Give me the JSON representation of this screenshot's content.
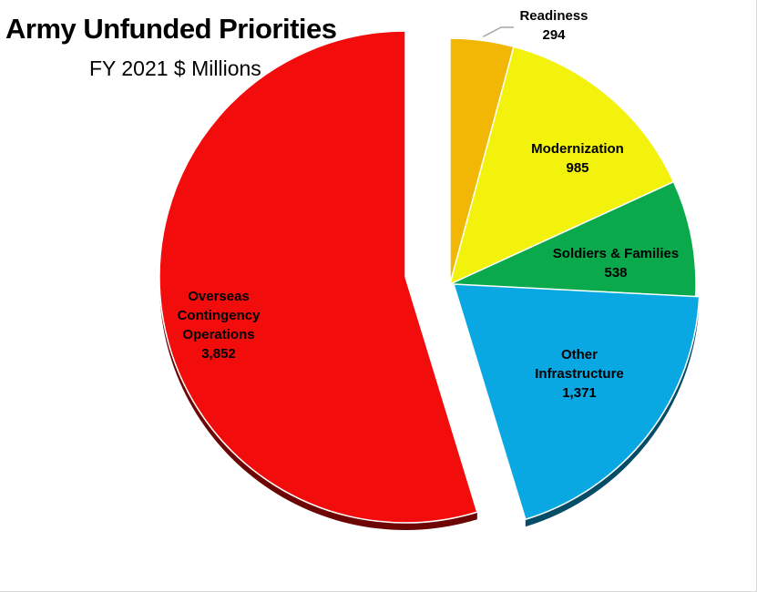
{
  "title": "Army Unfunded Priorities",
  "subtitle": "FY 2021 $ Millions",
  "chart_data": {
    "type": "pie",
    "title": "Army Unfunded Priorities",
    "subtitle": "FY 2021 $ Millions",
    "slices": [
      {
        "label": "Readiness",
        "value": 294,
        "value_text": "294",
        "color": "#F2B705",
        "exploded": false
      },
      {
        "label": "Modernization",
        "value": 985,
        "value_text": "985",
        "color": "#F2F20C",
        "exploded": false
      },
      {
        "label": "Soldiers & Families",
        "value": 538,
        "value_text": "538",
        "color": "#0AAA4C",
        "exploded": false
      },
      {
        "label": "Other Infrastructure",
        "value": 1371,
        "value_text": "1,371",
        "color": "#0AA8E2",
        "exploded": true
      },
      {
        "label": "Overseas Contingency Operations",
        "value": 3852,
        "value_text": "3,852",
        "color": "#F20C0C",
        "exploded": true
      }
    ],
    "legend": "none",
    "start_angle": "12 o'clock, clockwise"
  }
}
